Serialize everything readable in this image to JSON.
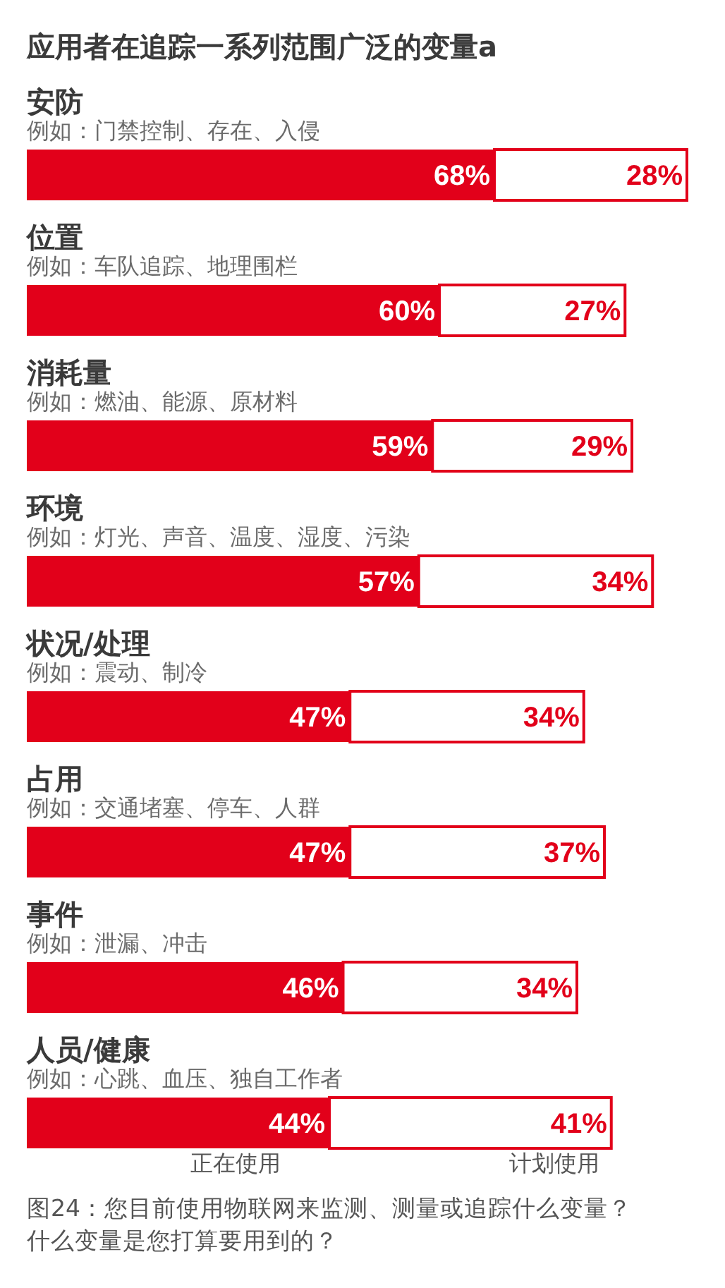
{
  "chart_data": {
    "type": "bar",
    "orientation": "horizontal",
    "stacked": true,
    "legend": "bottom",
    "title": "应用者在追踪一系列范围广泛的变量a",
    "categories": [
      "安防",
      "位置",
      "消耗量",
      "环境",
      "状况/处理",
      "占用",
      "事件",
      "人员/健康"
    ],
    "series": [
      {
        "name": "正在使用",
        "color": "#e2001a",
        "values": [
          68,
          60,
          59,
          57,
          47,
          47,
          46,
          44
        ],
        "value_labels": [
          "68%",
          "60%",
          "59%",
          "57%",
          "47%",
          "47%",
          "46%",
          "44%"
        ]
      },
      {
        "name": "计划使用",
        "color": "#ffffff",
        "values": [
          28,
          27,
          29,
          34,
          34,
          37,
          34,
          41
        ],
        "value_labels": [
          "28%",
          "27%",
          "29%",
          "34%",
          "34%",
          "37%",
          "34%",
          "41%"
        ]
      }
    ],
    "annotations": [
      "例如：门禁控制、存在、入侵",
      "例如：车队追踪、地理围栏",
      "例如：燃油、能源、原材料",
      "例如：灯光、声音、温度、湿度、污染",
      "例如：震动、制冷",
      "例如：交通堵塞、停车、人群",
      "例如：泄漏、冲击",
      "例如：心跳、血压、独自工作者",
      "图24：您目前使用物联网来监测、测量或追踪什么变量？什么变量是您打算要用到的？"
    ]
  }
}
